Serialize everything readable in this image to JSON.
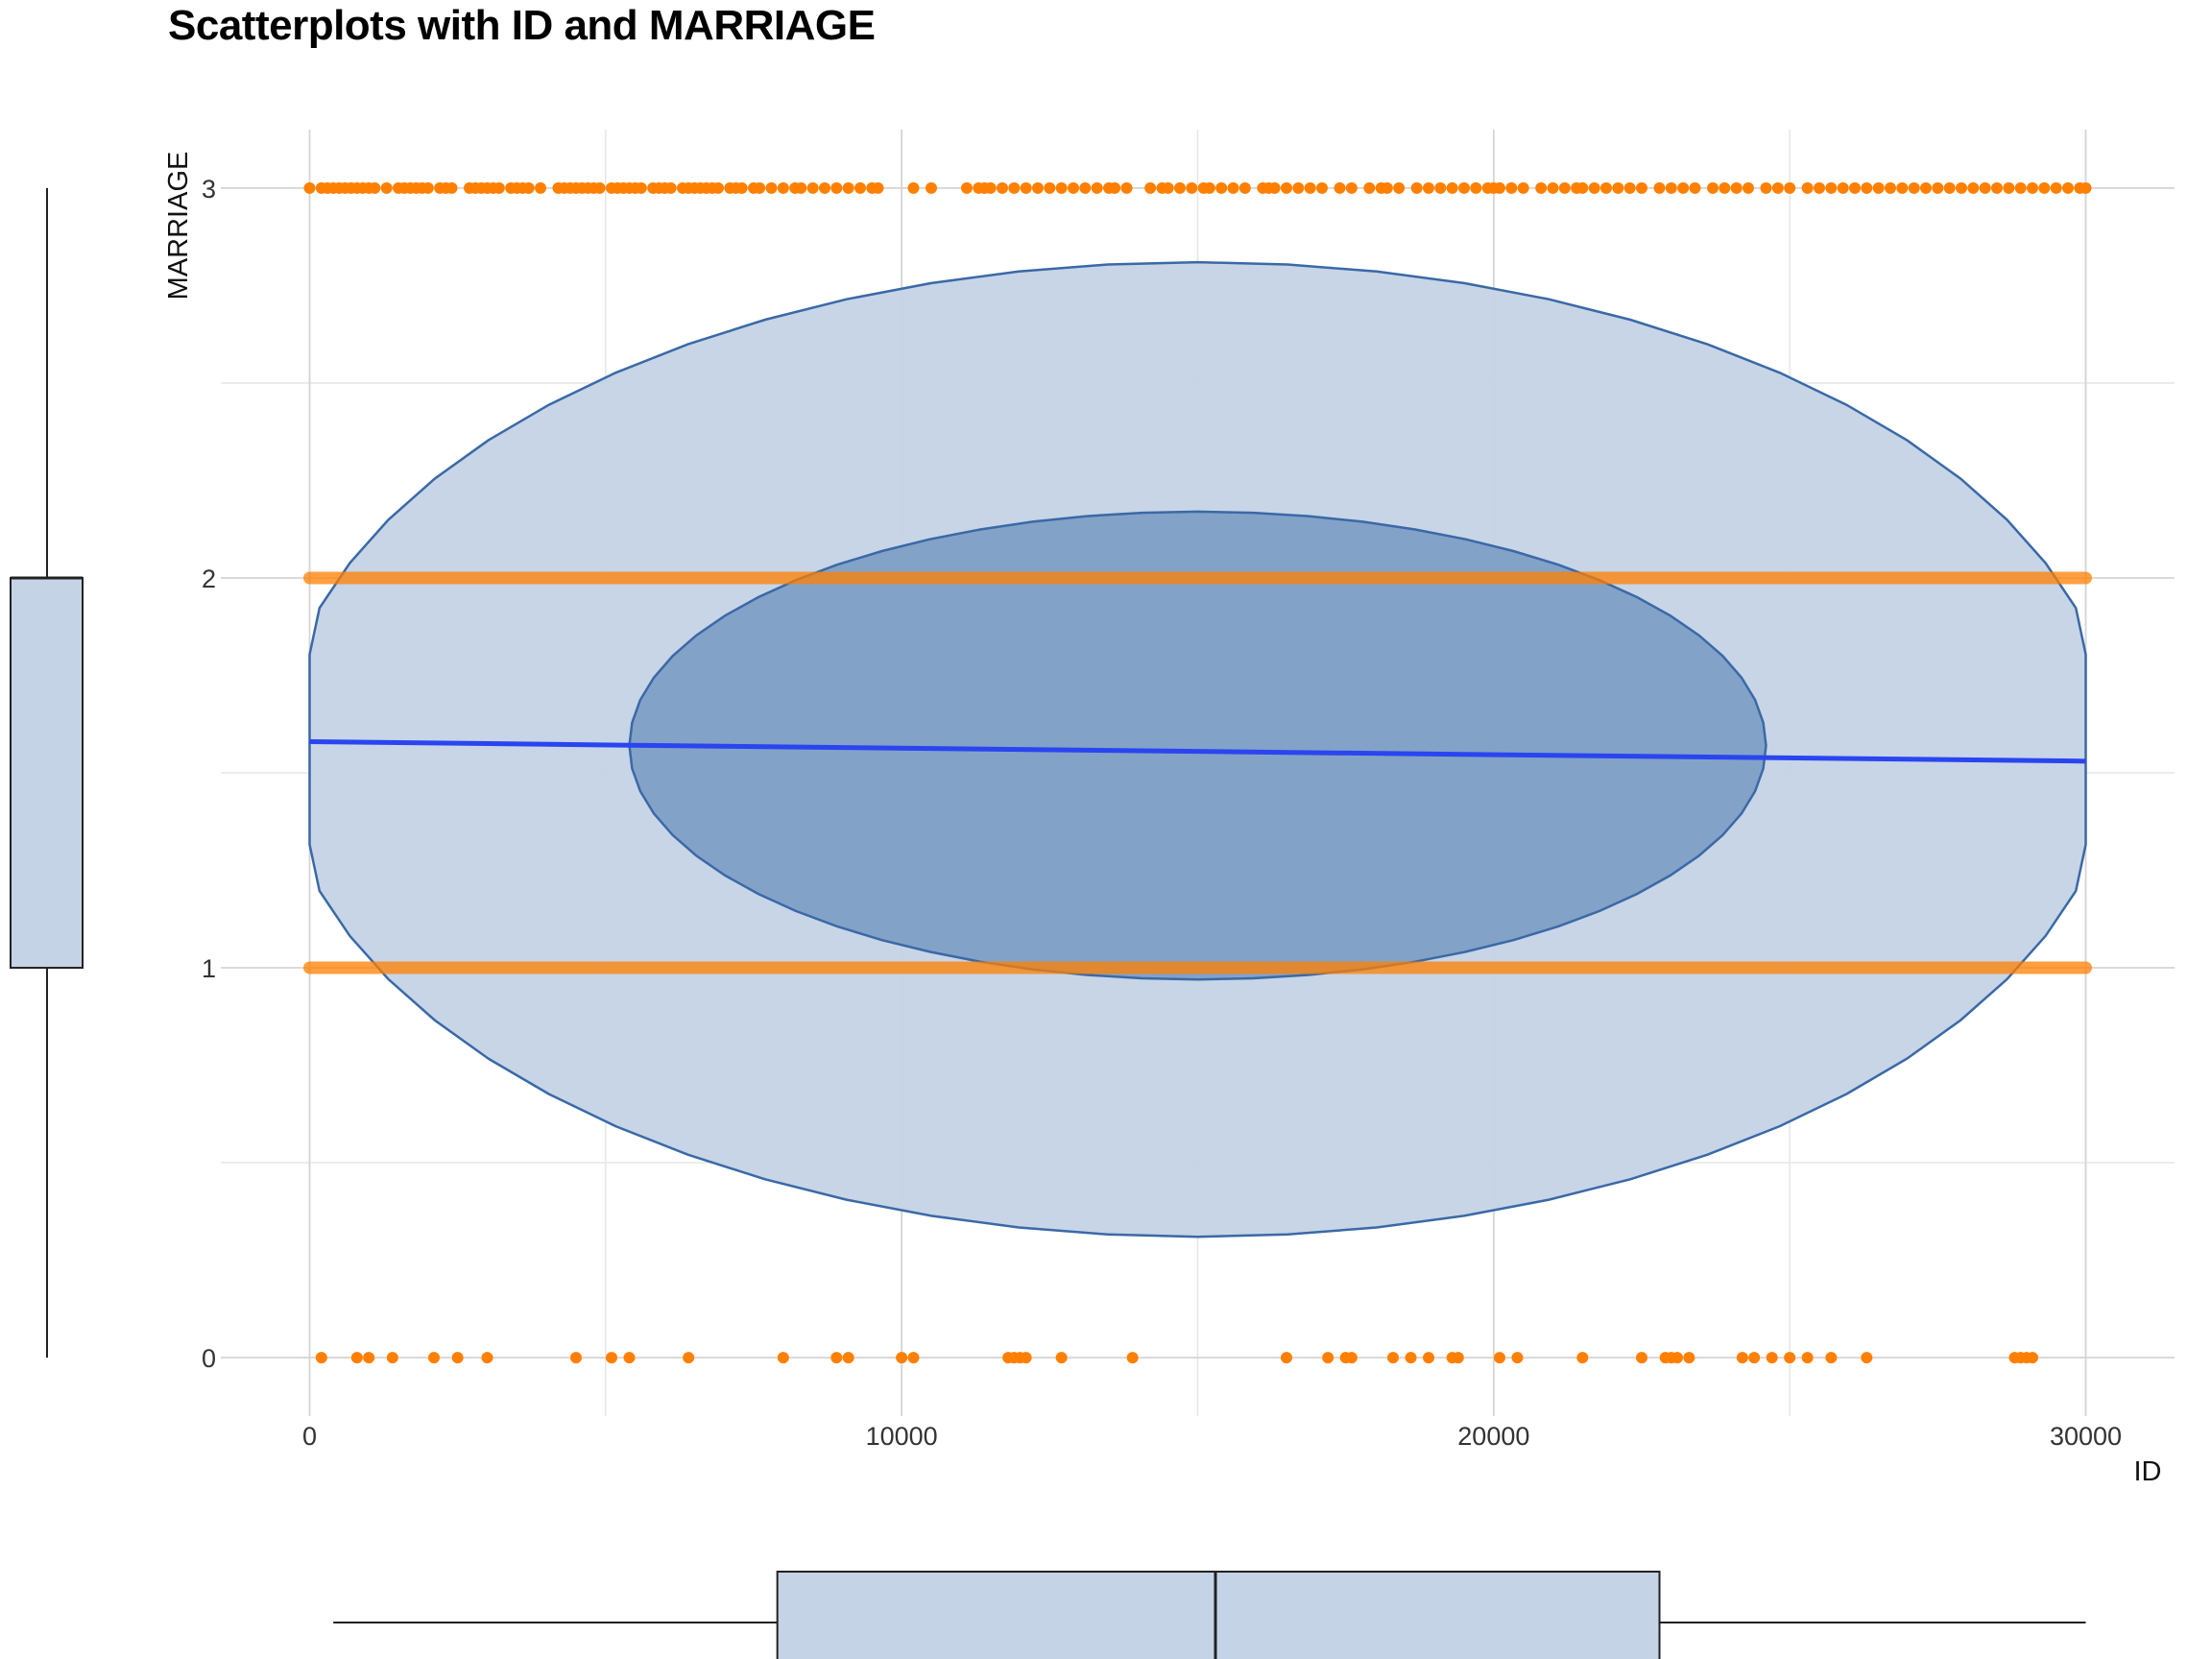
{
  "chart_data": {
    "type": "scatter",
    "title": "Scatterplots with ID and MARRIAGE",
    "xlabel": "ID",
    "ylabel": "MARRIAGE",
    "xlim": [
      -1500,
      31500
    ],
    "ylim": [
      -0.15,
      3.15
    ],
    "x_ticks": [
      0,
      10000,
      20000,
      30000
    ],
    "y_ticks": [
      0,
      1,
      2,
      3
    ],
    "grid": true,
    "colors": {
      "points": "#ff7f00",
      "fit_line": "#2a45f0",
      "ellipse_fill": "#c4d3e5",
      "ellipse_inner_fill": "#7f9fc5",
      "ellipse_stroke": "#3a69a7",
      "box_fill": "#c4d3e5",
      "box_stroke": "#222222"
    },
    "dense_series": [
      {
        "y": 2,
        "x_range": [
          0,
          30000
        ]
      },
      {
        "y": 1,
        "x_range": [
          0,
          30000
        ]
      }
    ],
    "points_y3_x": [
      0,
      200,
      300,
      400,
      500,
      600,
      700,
      800,
      900,
      1000,
      1100,
      1300,
      1500,
      1600,
      1700,
      1800,
      1900,
      2000,
      2200,
      2300,
      2400,
      2700,
      2800,
      2900,
      3000,
      3100,
      3200,
      3400,
      3500,
      3600,
      3700,
      3900,
      4200,
      4300,
      4400,
      4500,
      4600,
      4700,
      4800,
      4900,
      5100,
      5200,
      5300,
      5400,
      5500,
      5600,
      5800,
      5900,
      6000,
      6100,
      6300,
      6400,
      6500,
      6600,
      6700,
      6800,
      6900,
      7100,
      7200,
      7300,
      7500,
      7600,
      7800,
      8000,
      8200,
      8300,
      8500,
      8700,
      8900,
      9100,
      9300,
      9500,
      9600,
      10200,
      10500,
      11100,
      11300,
      11400,
      11500,
      11700,
      11900,
      12100,
      12300,
      12500,
      12700,
      12900,
      13100,
      13300,
      13500,
      13600,
      13800,
      14200,
      14400,
      14500,
      14700,
      14900,
      15100,
      15200,
      15400,
      15600,
      15800,
      16100,
      16200,
      16300,
      16500,
      16700,
      16900,
      17100,
      17400,
      17600,
      17900,
      18100,
      18200,
      18400,
      18700,
      18900,
      19100,
      19300,
      19500,
      19700,
      19900,
      20000,
      20100,
      20300,
      20500,
      20800,
      21000,
      21200,
      21400,
      21500,
      21700,
      21900,
      22100,
      22300,
      22500,
      22800,
      23000,
      23200,
      23400,
      23700,
      23900,
      24100,
      24300,
      24600,
      24800,
      25000,
      25300,
      25500,
      25700,
      25900,
      26100,
      26300,
      26500,
      26700,
      26900,
      27100,
      27300,
      27500,
      27700,
      27900,
      28100,
      28300,
      28500,
      28700,
      28900,
      29100,
      29300,
      29500,
      29700,
      29900,
      30000
    ],
    "points_y0_x": [
      200,
      800,
      1000,
      1400,
      2100,
      2500,
      3000,
      4500,
      5100,
      5400,
      6400,
      8000,
      8900,
      9100,
      10000,
      10200,
      11800,
      11900,
      12000,
      12100,
      12700,
      13900,
      16500,
      17200,
      17500,
      17600,
      18300,
      18600,
      18900,
      19300,
      19400,
      20100,
      20400,
      21500,
      22500,
      22900,
      23000,
      23100,
      23300,
      24200,
      24400,
      24700,
      25000,
      25300,
      25700,
      26300,
      28800,
      28900,
      29000,
      29100
    ],
    "fit_line": {
      "x": [
        0,
        30000
      ],
      "y": [
        1.58,
        1.53
      ]
    },
    "ellipse_outer": {
      "cx": 15000,
      "cy": 1.56,
      "rx": 15500,
      "ry": 1.25
    },
    "ellipse_inner": {
      "cx": 15000,
      "cy": 1.57,
      "rx": 9600,
      "ry": 0.6
    },
    "boxplot_x": {
      "min": 400,
      "q1": 7900,
      "median": 15300,
      "q3": 22800,
      "max": 30000
    },
    "boxplot_y": {
      "min": 0,
      "q1": 1,
      "median": 2,
      "q3": 2,
      "max": 3
    }
  }
}
